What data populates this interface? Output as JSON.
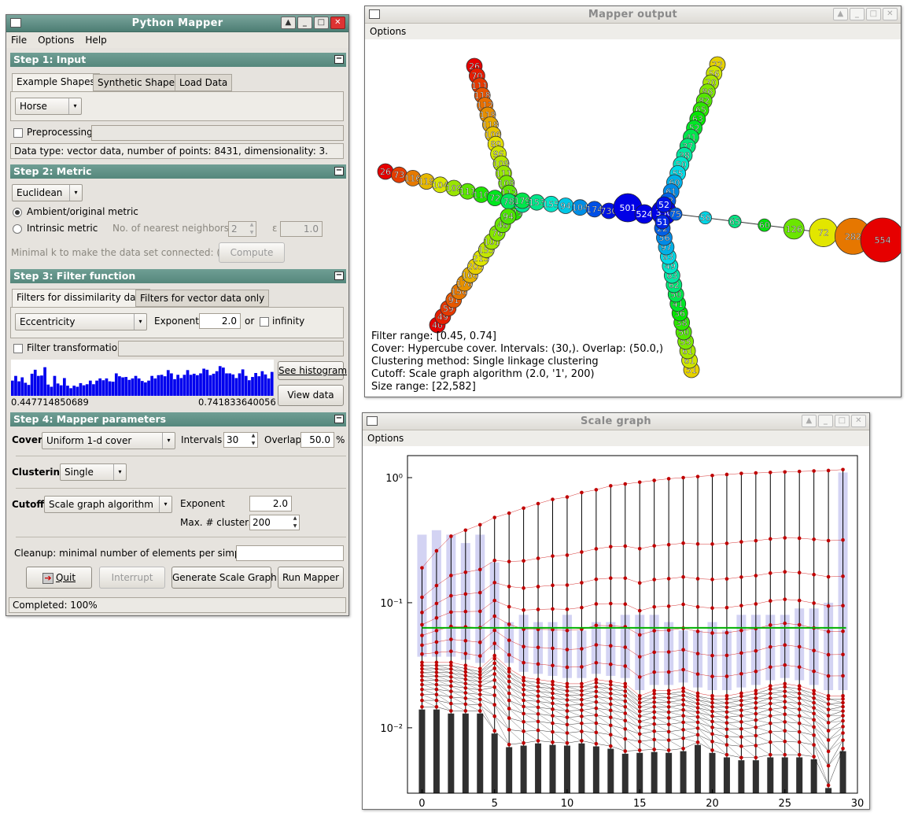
{
  "python_mapper": {
    "title": "Python Mapper",
    "menu": [
      "File",
      "Options",
      "Help"
    ],
    "step1": {
      "header": "Step 1: Input",
      "tabs": [
        "Example Shapes",
        "Synthetic Shapes",
        "Load Data"
      ],
      "shape": "Horse",
      "preprocessing_label": "Preprocessing",
      "data_type": "Data type: vector data, number of points: 8431, dimensionality: 3."
    },
    "step2": {
      "header": "Step 2: Metric",
      "metric": "Euclidean",
      "ambient_label": "Ambient/original metric",
      "intrinsic_label": "Intrinsic metric",
      "neighbors_label": "No. of nearest neighbors k",
      "k_value": "2",
      "epsilon_label": "ε",
      "epsilon_value": "1.0",
      "minimal_k_label": "Minimal k to make the data set connected: (?)",
      "compute_label": "Compute"
    },
    "step3": {
      "header": "Step 3: Filter function",
      "tabs": [
        "Filters for dissimilarity data",
        "Filters for vector data only"
      ],
      "filter": "Eccentricity",
      "exponent_label": "Exponent",
      "exponent_value": "2.0",
      "or_label": "or",
      "infinity_label": "infinity",
      "transformation_label": "Filter transformation",
      "hist_min": "0.447714850689",
      "hist_max": "0.741833640056",
      "see_histogram": "See histogram",
      "view_data": "View data",
      "histogram": [
        0.42,
        0.55,
        0.4,
        0.51,
        0.36,
        0.3,
        0.61,
        0.72,
        0.55,
        0.56,
        0.79,
        0.31,
        0.25,
        0.55,
        0.34,
        0.29,
        0.49,
        0.28,
        0.21,
        0.28,
        0.25,
        0.35,
        0.29,
        0.32,
        0.42,
        0.32,
        0.42,
        0.48,
        0.43,
        0.48,
        0.4,
        0.39,
        0.62,
        0.54,
        0.51,
        0.52,
        0.44,
        0.48,
        0.55,
        0.48,
        0.41,
        0.37,
        0.42,
        0.55,
        0.48,
        0.57,
        0.58,
        0.54,
        0.71,
        0.62,
        0.46,
        0.58,
        0.49,
        0.58,
        0.71,
        0.58,
        0.61,
        0.57,
        0.62,
        0.75,
        0.72,
        0.57,
        0.61,
        0.68,
        0.82,
        0.78,
        0.62,
        0.62,
        0.59,
        0.49,
        0.62,
        0.73,
        0.55,
        0.43,
        0.52,
        0.63,
        0.54,
        0.68,
        0.59,
        0.48,
        0.66
      ]
    },
    "step4": {
      "header": "Step 4: Mapper parameters",
      "cover_label": "Cover",
      "cover": "Uniform 1-d cover",
      "intervals_label": "Intervals",
      "intervals": "30",
      "overlap_label": "Overlap",
      "overlap": "50.0",
      "percent": "%",
      "clustering_label": "Clustering",
      "clustering": "Single",
      "cutoff_label": "Cutoff",
      "cutoff": "Scale graph algorithm",
      "exponent_label": "Exponent",
      "exponent": "2.0",
      "max_clusters_label": "Max. # clusters",
      "max_clusters": "200",
      "cleanup_label": "Cleanup: minimal number of elements per simplex"
    },
    "buttons": {
      "quit": "Quit",
      "interrupt": "Interrupt",
      "generate": "Generate Scale Graph",
      "run": "Run Mapper"
    },
    "status": "Completed: 100%"
  },
  "mapper_output": {
    "title": "Mapper output",
    "menu": [
      "Options"
    ],
    "filter_range": "Filter range: [0.45, 0.74]",
    "cover": "Cover: Hypercube cover. Intervals: (30,). Overlap: (50.0,)",
    "clustering": "Clustering method: Single linkage clustering",
    "cutoff": "Cutoff: Scale graph algorithm (2.0, '1', 200)",
    "size_range": "Size range: [22,582]",
    "labels": {
      "upper_left": [
        "26",
        "70",
        "111",
        "118",
        "112",
        "118",
        "118",
        "106",
        "89",
        "96",
        "108",
        "111",
        "108",
        "112",
        "110",
        "179"
      ],
      "left": [
        "26",
        "73",
        "116",
        "119",
        "104",
        "109",
        "111",
        "110",
        "72",
        "78",
        "153"
      ],
      "lower_left": [
        "40",
        "49",
        "59",
        "91",
        "156",
        "178",
        "166",
        "203",
        "213",
        "153",
        "101",
        "76",
        "48",
        "94"
      ],
      "upper_right": [
        "22",
        "56",
        "70",
        "86",
        "82",
        "65",
        "63",
        "52",
        "41",
        "37",
        "38",
        "50",
        "55",
        "60",
        "61",
        "52"
      ],
      "lower_right": [
        "51",
        "61",
        "61",
        "55",
        "50",
        "38",
        "36",
        "41",
        "50",
        "62",
        "63",
        "49",
        "83",
        "97",
        "56",
        "22"
      ],
      "center": [
        "501",
        "524",
        "330",
        "52",
        "51"
      ],
      "right": [
        "554",
        "282",
        "72",
        "126",
        "60",
        "65",
        "56",
        "75"
      ]
    }
  },
  "scale_graph": {
    "title": "Scale graph",
    "menu": [
      "Options"
    ],
    "chart_data": {
      "type": "scatter",
      "x_ticks": [
        "0",
        "5",
        "10",
        "15",
        "20",
        "25",
        "30"
      ],
      "y_ticks": [
        "10⁰",
        "10⁻¹",
        "10⁻²"
      ],
      "xlim": [
        -1,
        30
      ],
      "ylim": [
        0.003,
        1.5
      ],
      "log_y": true,
      "threshold": 0.063,
      "colors": {
        "nodes": "#c00000",
        "edges": "#000000",
        "bars": "#303030",
        "band": "#c8c8f0",
        "threshold": "#00b000"
      },
      "band_upper": [
        0.35,
        0.38,
        0.35,
        0.3,
        0.35,
        0.21,
        0.07,
        0.08,
        0.07,
        0.07,
        0.08,
        0.06,
        0.07,
        0.07,
        0.08,
        0.08,
        0.08,
        0.07,
        0.06,
        0.06,
        0.07,
        0.06,
        0.08,
        0.08,
        0.08,
        0.08,
        0.09,
        0.09,
        0.1,
        1.1
      ],
      "band_lower": [
        0.037,
        0.037,
        0.037,
        0.035,
        0.033,
        0.042,
        0.033,
        0.028,
        0.027,
        0.026,
        0.025,
        0.025,
        0.027,
        0.026,
        0.025,
        0.02,
        0.022,
        0.022,
        0.023,
        0.021,
        0.02,
        0.02,
        0.021,
        0.022,
        0.024,
        0.025,
        0.024,
        0.022,
        0.02,
        0.02
      ],
      "bar_tops": [
        0.014,
        0.014,
        0.013,
        0.013,
        0.013,
        0.009,
        0.007,
        0.0072,
        0.0075,
        0.0073,
        0.0072,
        0.0075,
        0.0071,
        0.0068,
        0.0062,
        0.0063,
        0.0064,
        0.0063,
        0.0065,
        0.0073,
        0.0063,
        0.0058,
        0.0055,
        0.0055,
        0.0058,
        0.0058,
        0.0058,
        0.0056,
        0.0033,
        0.0065
      ],
      "top_nodes": [
        0.19,
        0.26,
        0.34,
        0.38,
        0.42,
        0.48,
        0.52,
        0.57,
        0.62,
        0.67,
        0.7,
        0.76,
        0.8,
        0.86,
        0.89,
        0.92,
        0.95,
        0.98,
        1.0,
        1.02,
        1.04,
        1.06,
        1.08,
        1.09,
        1.1,
        1.11,
        1.12,
        1.13,
        1.14,
        1.16
      ]
    }
  }
}
